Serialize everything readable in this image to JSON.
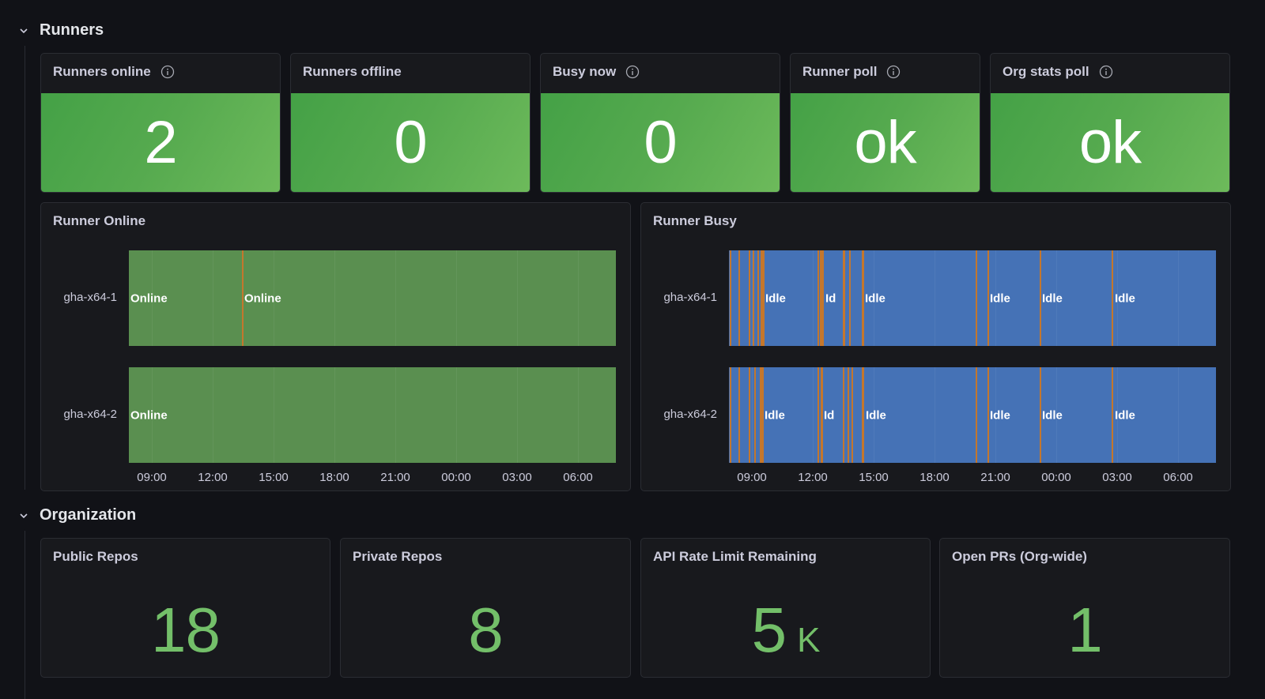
{
  "rows": {
    "runners_title": "Runners",
    "organization_title": "Organization"
  },
  "stats": [
    {
      "title": "Runners online",
      "value": "2",
      "has_info": true
    },
    {
      "title": "Runners offline",
      "value": "0",
      "has_info": false
    },
    {
      "title": "Busy now",
      "value": "0",
      "has_info": true
    },
    {
      "title": "Runner poll",
      "value": "ok",
      "has_info": true
    },
    {
      "title": "Org stats poll",
      "value": "ok",
      "has_info": true
    }
  ],
  "runner_online": {
    "title": "Runner Online",
    "rows": [
      {
        "name": "gha-x64-1",
        "segments": [
          {
            "label": "Online"
          },
          {
            "label": "Online"
          }
        ]
      },
      {
        "name": "gha-x64-2",
        "segments": [
          {
            "label": "Online"
          }
        ]
      }
    ],
    "ticks": [
      "09:00",
      "12:00",
      "15:00",
      "18:00",
      "21:00",
      "00:00",
      "03:00",
      "06:00"
    ]
  },
  "runner_busy": {
    "title": "Runner Busy",
    "rows": [
      {
        "name": "gha-x64-1",
        "labels": [
          "Idle",
          "Id",
          "Idle",
          "Idle",
          "Idle",
          "Idle"
        ]
      },
      {
        "name": "gha-x64-2",
        "labels": [
          "Idle",
          "Id",
          "Idle",
          "Idle",
          "Idle",
          "Idle"
        ]
      }
    ],
    "ticks": [
      "09:00",
      "12:00",
      "15:00",
      "18:00",
      "21:00",
      "00:00",
      "03:00",
      "06:00"
    ]
  },
  "org": [
    {
      "title": "Public Repos",
      "value": "18",
      "unit": ""
    },
    {
      "title": "Private Repos",
      "value": "8",
      "unit": ""
    },
    {
      "title": "API Rate Limit Remaining",
      "value": "5",
      "unit": "K"
    },
    {
      "title": "Open PRs (Org-wide)",
      "value": "1",
      "unit": ""
    }
  ],
  "colors": {
    "online": "#5a8f50",
    "idle": "#4572b6",
    "busy_mark": "#c4772d",
    "stat_green": "#56aa4f",
    "org_value": "#73bf69"
  }
}
